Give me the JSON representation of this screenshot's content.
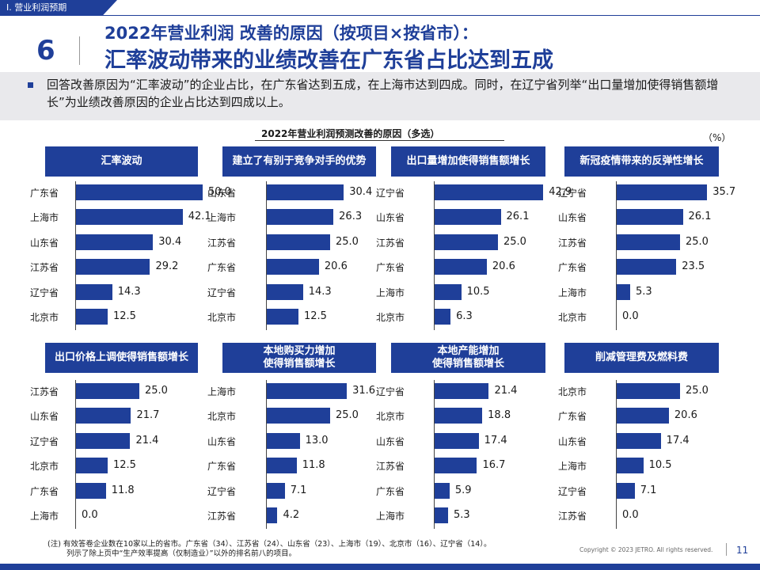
{
  "header": {
    "section_tag": "Ⅰ. 营业利润预期",
    "page_no_large": "6",
    "title_line1": "2022年营业利润 改善的原因（按项目×按省市）：",
    "title_line2": "汇率波动带来的业绩改善在广东省占比达到五成"
  },
  "summary": {
    "text": "回答改善原因为“汇率波动”的企业占比，在广东省达到五成，在上海市达到四成。同时，在辽宁省列举“出口量增加使得销售额增长”为业绩改善原因的企业占比达到四成以上。"
  },
  "chart_title": "2022年营业利润预测改善的原因（多选）",
  "unit_label": "（%）",
  "chart_data": [
    {
      "type": "bar",
      "title": "汇率波动",
      "categories": [
        "广东省",
        "上海市",
        "山东省",
        "江苏省",
        "辽宁省",
        "北京市"
      ],
      "values": [
        50.0,
        42.1,
        30.4,
        29.2,
        14.3,
        12.5
      ],
      "labels": [
        "50.0",
        "42.1",
        "30.4",
        "29.2",
        "14.3",
        "12.5"
      ],
      "xlim": [
        0,
        50
      ]
    },
    {
      "type": "bar",
      "title": "建立了有别于竞争对手的优势",
      "categories": [
        "山东省",
        "上海市",
        "江苏省",
        "广东省",
        "辽宁省",
        "北京市"
      ],
      "values": [
        30.4,
        26.3,
        25.0,
        20.6,
        14.3,
        12.5
      ],
      "labels": [
        "30.4",
        "26.3",
        "25.0",
        "20.6",
        "14.3",
        "12.5"
      ],
      "xlim": [
        0,
        50
      ]
    },
    {
      "type": "bar",
      "title": "出口量增加使得销售额增长",
      "categories": [
        "辽宁省",
        "山东省",
        "江苏省",
        "广东省",
        "上海市",
        "北京市"
      ],
      "values": [
        42.9,
        26.1,
        25.0,
        20.6,
        10.5,
        6.3
      ],
      "labels": [
        "42.9",
        "26.1",
        "25.0",
        "20.6",
        "10.5",
        "6.3"
      ],
      "xlim": [
        0,
        50
      ]
    },
    {
      "type": "bar",
      "title": "新冠疫情带来的反弹性增长",
      "categories": [
        "辽宁省",
        "山东省",
        "江苏省",
        "广东省",
        "上海市",
        "北京市"
      ],
      "values": [
        35.7,
        26.1,
        25.0,
        23.5,
        5.3,
        0.0
      ],
      "labels": [
        "35.7",
        "26.1",
        "25.0",
        "23.5",
        "5.3",
        "0.0"
      ],
      "xlim": [
        0,
        50
      ]
    },
    {
      "type": "bar",
      "title": "出口价格上调使得销售额增长",
      "categories": [
        "江苏省",
        "山东省",
        "辽宁省",
        "北京市",
        "广东省",
        "上海市"
      ],
      "values": [
        25.0,
        21.7,
        21.4,
        12.5,
        11.8,
        0.0
      ],
      "labels": [
        "25.0",
        "21.7",
        "21.4",
        "12.5",
        "11.8",
        "0.0"
      ],
      "xlim": [
        0,
        50
      ]
    },
    {
      "type": "bar",
      "title": "本地购买力增加\n使得销售额增长",
      "categories": [
        "上海市",
        "北京市",
        "山东省",
        "广东省",
        "辽宁省",
        "江苏省"
      ],
      "values": [
        31.6,
        25.0,
        13.0,
        11.8,
        7.1,
        4.2
      ],
      "labels": [
        "31.6",
        "25.0",
        "13.0",
        "11.8",
        "7.1",
        "4.2"
      ],
      "xlim": [
        0,
        50
      ]
    },
    {
      "type": "bar",
      "title": "本地产能增加\n使得销售额增长",
      "categories": [
        "辽宁省",
        "北京市",
        "山东省",
        "江苏省",
        "广东省",
        "上海市"
      ],
      "values": [
        21.4,
        18.8,
        17.4,
        16.7,
        5.9,
        5.3
      ],
      "labels": [
        "21.4",
        "18.8",
        "17.4",
        "16.7",
        "5.9",
        "5.3"
      ],
      "xlim": [
        0,
        50
      ]
    },
    {
      "type": "bar",
      "title": "削减管理费及燃料费",
      "categories": [
        "北京市",
        "广东省",
        "山东省",
        "上海市",
        "辽宁省",
        "江苏省"
      ],
      "values": [
        25.0,
        20.6,
        17.4,
        10.5,
        7.1,
        0.0
      ],
      "labels": [
        "25.0",
        "20.6",
        "17.4",
        "10.5",
        "7.1",
        "0.0"
      ],
      "xlim": [
        0,
        50
      ]
    }
  ],
  "footer": {
    "note_line1": "(注) 有效答卷企业数在10家以上的省市。广东省（34）、江苏省（24）、山东省（23）、上海市（19）、北京市（16）、辽宁省（14）。",
    "note_line2": "列示了除上页中“生产效率提高（仅制造业）”以外的排名前八的项目。",
    "copyright": "Copyright © 2023 JETRO. All rights reserved.",
    "page_number": "11"
  },
  "colors": {
    "brand": "#1f3f99",
    "summary_bg": "#e9e9ec"
  }
}
